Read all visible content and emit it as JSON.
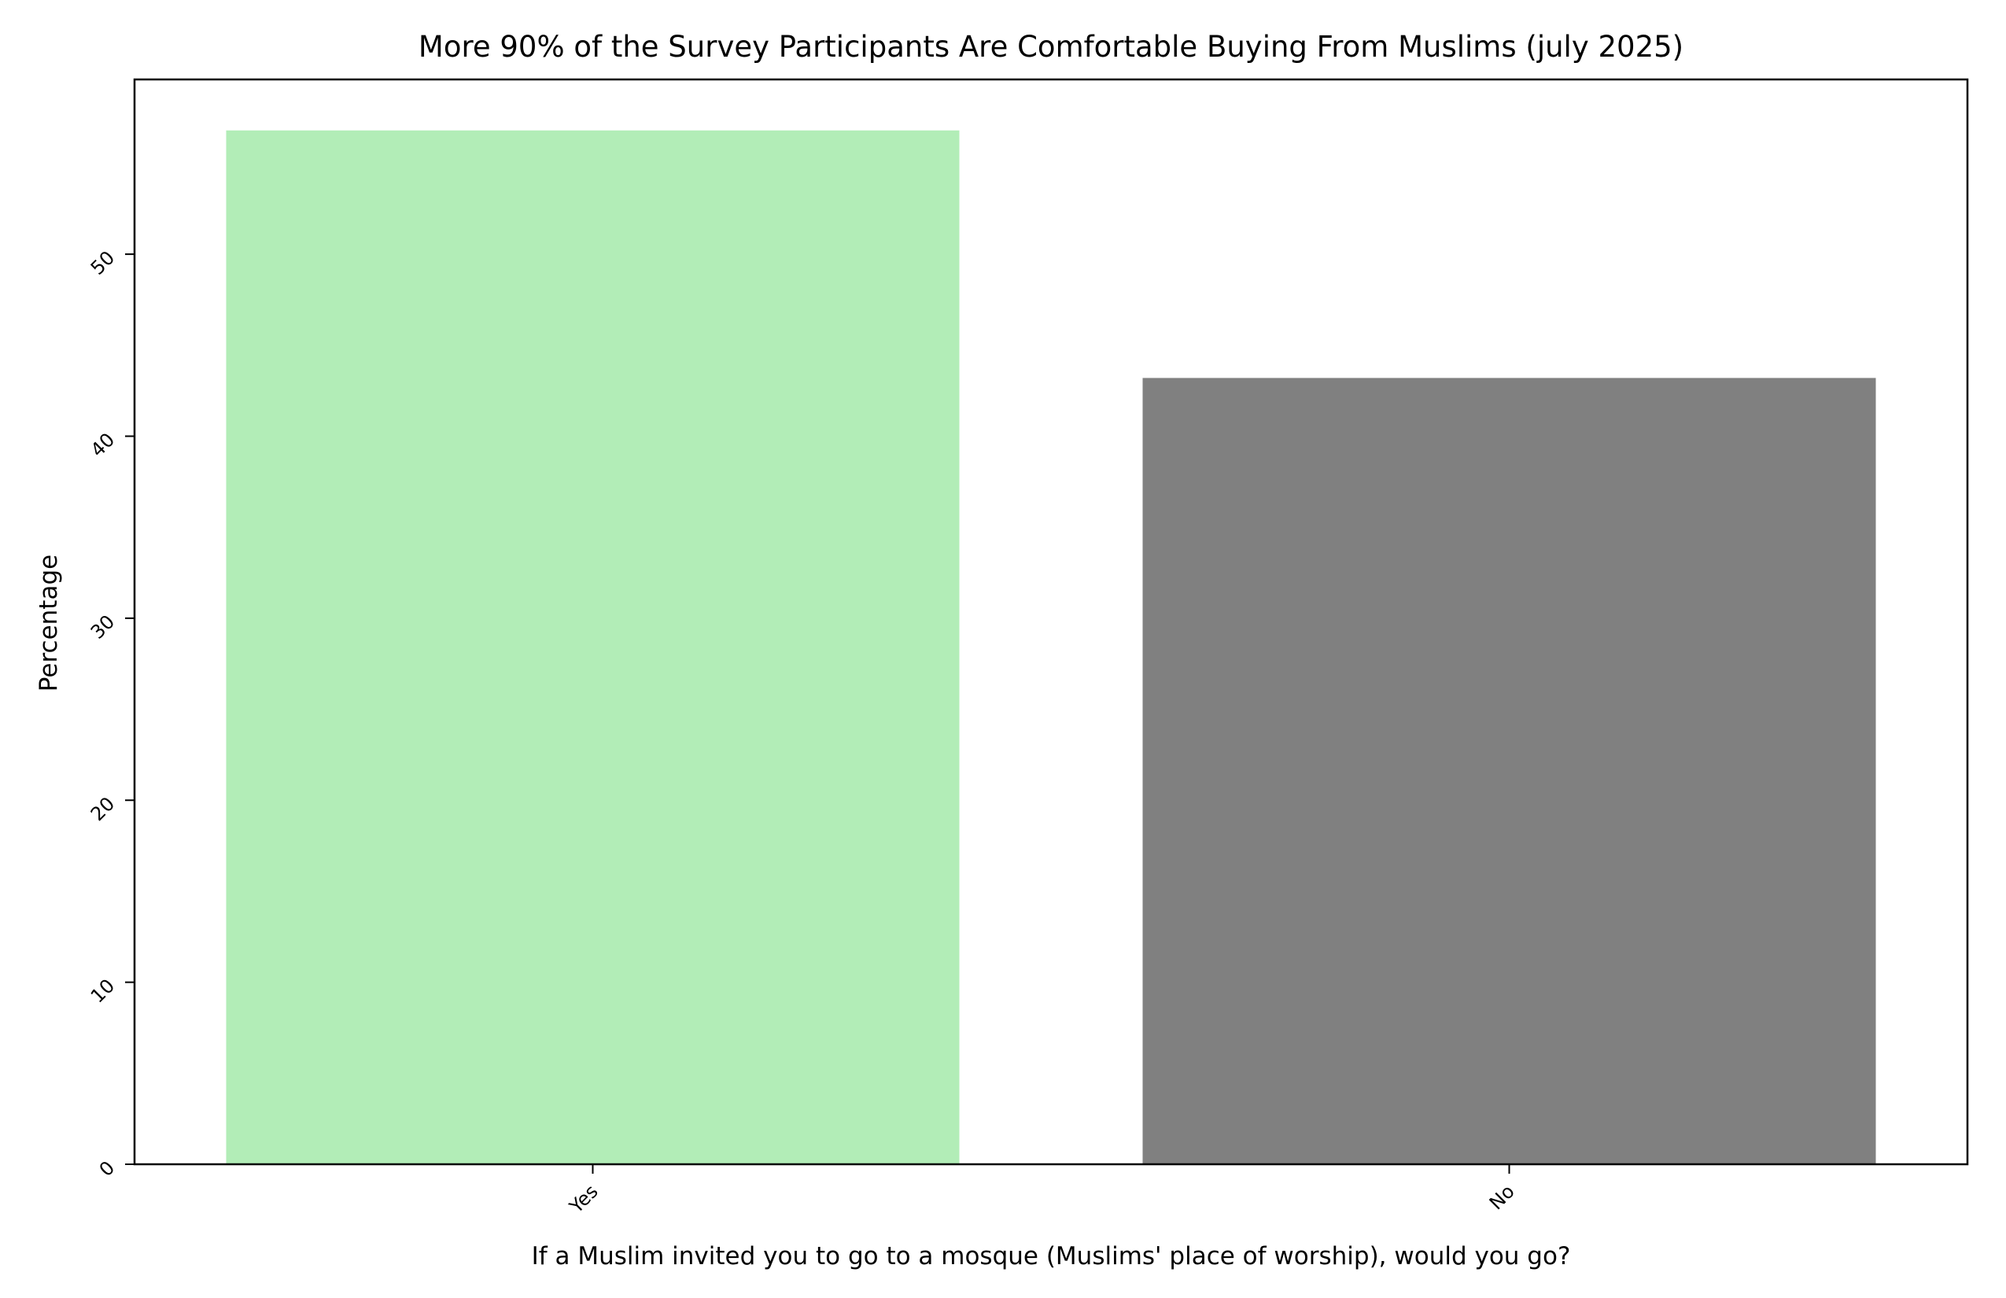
{
  "chart_data": {
    "type": "bar",
    "title": "More 90% of the Survey Participants Are Comfortable Buying From Muslims (july 2025)",
    "xlabel": "If a Muslim invited you to go to a mosque (Muslims' place of worship), would you go?",
    "ylabel": "Percentage",
    "categories": [
      "Yes",
      "No"
    ],
    "values": [
      56.8,
      43.2
    ],
    "colors": [
      "#b2edb7",
      "#808080"
    ],
    "ylim": [
      0,
      59.6
    ],
    "yticks": [
      0,
      10,
      20,
      30,
      40,
      50
    ],
    "grid": false,
    "legend": false
  }
}
